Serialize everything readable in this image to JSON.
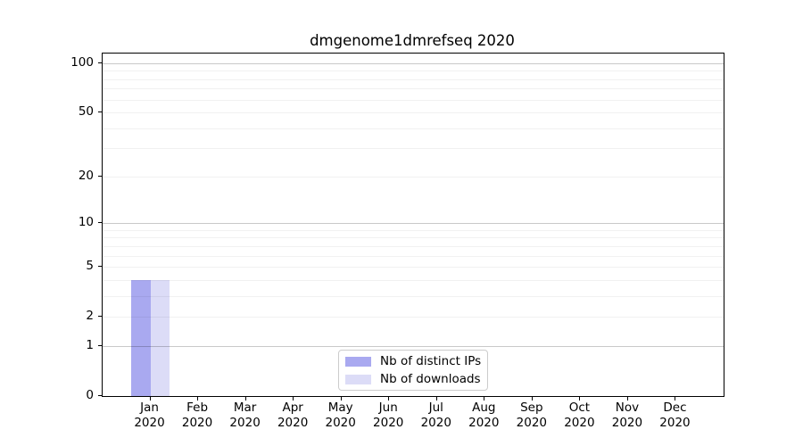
{
  "title": "dmgenome1dmrefseq 2020",
  "chart_data": {
    "type": "bar",
    "title": "dmgenome1dmrefseq 2020",
    "categories": [
      "Jan",
      "Feb",
      "Mar",
      "Apr",
      "May",
      "Jun",
      "Jul",
      "Aug",
      "Sep",
      "Oct",
      "Nov",
      "Dec"
    ],
    "year": "2020",
    "series": [
      {
        "name": "Nb of distinct IPs",
        "color": "#a9a9f0",
        "values": [
          4,
          0,
          0,
          0,
          0,
          0,
          0,
          0,
          0,
          0,
          0,
          0
        ]
      },
      {
        "name": "Nb of downloads",
        "color": "#dcdcf7",
        "values": [
          4,
          0,
          0,
          0,
          0,
          0,
          0,
          0,
          0,
          0,
          0,
          0
        ]
      }
    ],
    "yticks": [
      0,
      1,
      2,
      5,
      10,
      20,
      50,
      100
    ],
    "scale": "log1p",
    "ylim": [
      0,
      114
    ],
    "xlabel": "",
    "ylabel": "",
    "grid": {
      "on": true,
      "minor_values": [
        2,
        3,
        4,
        5,
        6,
        7,
        8,
        9,
        20,
        30,
        40,
        50,
        60,
        70,
        80,
        90
      ],
      "major_values": [
        1,
        10,
        100
      ]
    },
    "legend_position": "lower center",
    "colors": {
      "grid_minor": "rgba(0,0,0,0.055)",
      "grid_major": "rgba(0,0,0,0.21)",
      "spine": "#000000"
    }
  }
}
